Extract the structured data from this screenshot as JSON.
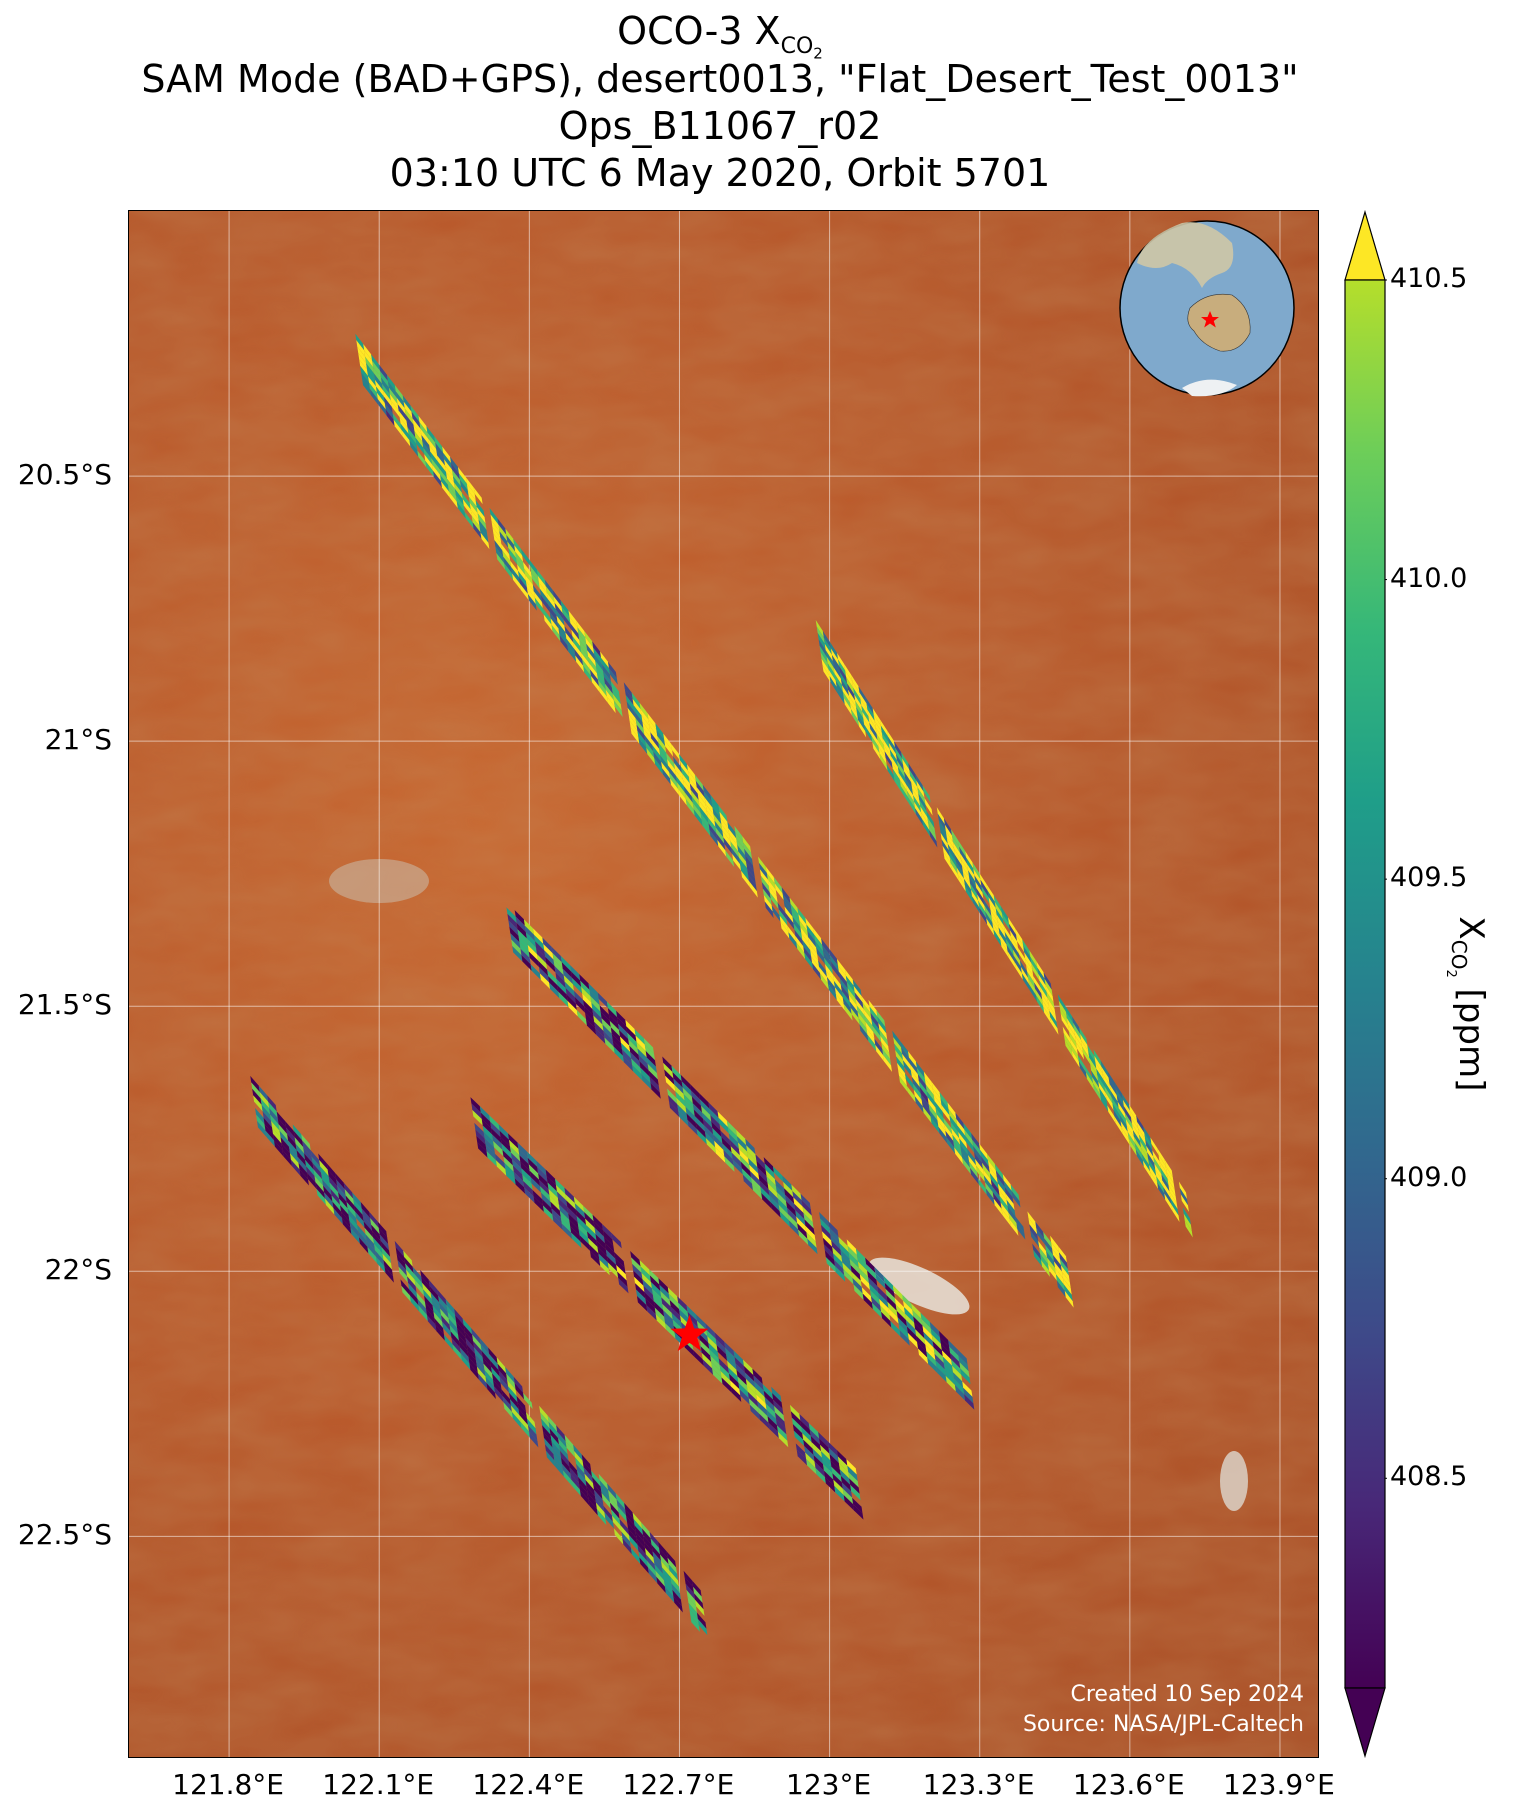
{
  "title": {
    "line1_prefix": "OCO-3 X",
    "line1_sub": "CO",
    "line1_sub2": "2",
    "line2": "SAM Mode (BAD+GPS), desert0013, \"Flat_Desert_Test_0013\"",
    "line3": "Ops_B11067_r02",
    "line4": "03:10 UTC 6 May 2020, Orbit 5701"
  },
  "axes": {
    "lat_ticks": [
      "20.5°S",
      "21°S",
      "21.5°S",
      "22°S",
      "22.5°S"
    ],
    "lat_values": [
      -20.5,
      -21.0,
      -21.5,
      -22.0,
      -22.5
    ],
    "lon_ticks": [
      "121.8°E",
      "122.1°E",
      "122.4°E",
      "122.7°E",
      "123°E",
      "123.3°E",
      "123.6°E",
      "123.9°E"
    ],
    "lon_values": [
      121.8,
      122.1,
      122.4,
      122.7,
      123.0,
      123.3,
      123.6,
      123.9
    ],
    "lat_range": [
      -22.92,
      -20.0
    ],
    "lon_range": [
      121.6,
      123.98
    ]
  },
  "credit": {
    "line1": "Created 10 Sep 2024",
    "line2": "Source: NASA/JPL-Caltech"
  },
  "colorbar": {
    "label_prefix": "X",
    "label_sub": "CO",
    "label_sub2": "2",
    "label_suffix": " [ppm]",
    "ticks": [
      "410.5",
      "410.0",
      "409.5",
      "409.0",
      "408.5"
    ],
    "tick_values": [
      410.5,
      410.0,
      409.5,
      409.0,
      408.5
    ],
    "range": [
      408.15,
      410.5
    ],
    "colormap": "viridis",
    "extend": "both"
  },
  "target_marker": {
    "lon": 122.72,
    "lat": -22.12,
    "color": "#ff0000",
    "icon": "star-icon"
  },
  "inset_globe": {
    "icon": "globe-icon",
    "marker_icon": "star-icon",
    "marker_color": "#ff0000"
  },
  "chart_data": {
    "type": "heatmap",
    "title": "OCO-3 XCO2",
    "variable": "XCO2 [ppm]",
    "swaths": [
      {
        "start": [
          122.06,
          -20.28
        ],
        "end": [
          123.48,
          -22.02
        ],
        "mean": 409.9
      },
      {
        "start": [
          122.98,
          -20.82
        ],
        "end": [
          123.72,
          -21.9
        ],
        "mean": 410.1
      },
      {
        "start": [
          122.36,
          -21.35
        ],
        "end": [
          123.3,
          -22.23
        ],
        "mean": 409.1
      },
      {
        "start": [
          122.29,
          -21.72
        ],
        "end": [
          123.06,
          -22.42
        ],
        "mean": 409.0
      },
      {
        "start": [
          121.85,
          -21.68
        ],
        "end": [
          122.75,
          -22.65
        ],
        "mean": 408.9
      }
    ]
  }
}
